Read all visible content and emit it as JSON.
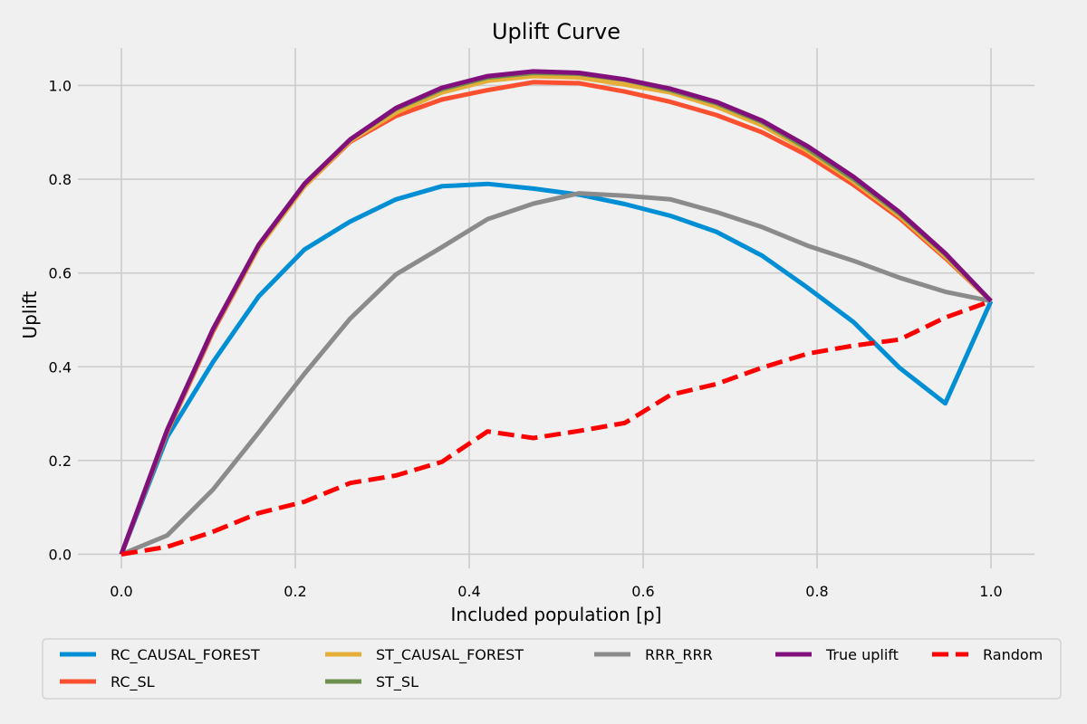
{
  "chart_data": {
    "type": "line",
    "title": "Uplift Curve",
    "xlabel": "Included population [p]",
    "ylabel": "Uplift",
    "xlim": [
      -0.05,
      1.05
    ],
    "ylim": [
      -0.03,
      1.08
    ],
    "xticks": [
      0.0,
      0.2,
      0.4,
      0.6,
      0.8,
      1.0
    ],
    "yticks": [
      0.0,
      0.2,
      0.4,
      0.6,
      0.8,
      1.0
    ],
    "tick_labels_x": [
      "0.0",
      "0.2",
      "0.4",
      "0.6",
      "0.8",
      "1.0"
    ],
    "tick_labels_y": [
      "0.0",
      "0.2",
      "0.4",
      "0.6",
      "0.8",
      "1.0"
    ],
    "grid": true,
    "legend_position": "bottom",
    "x": [
      0.0,
      0.0526,
      0.1053,
      0.1579,
      0.2105,
      0.2632,
      0.3158,
      0.3684,
      0.4211,
      0.4737,
      0.5263,
      0.5789,
      0.6316,
      0.6842,
      0.7368,
      0.7895,
      0.8421,
      0.8947,
      0.9474,
      1.0
    ],
    "series": [
      {
        "name": "RC_CAUSAL_FOREST",
        "color": "#008fd5",
        "dash": false,
        "values": [
          0.0,
          0.25,
          0.41,
          0.55,
          0.65,
          0.71,
          0.757,
          0.785,
          0.79,
          0.78,
          0.767,
          0.747,
          0.722,
          0.688,
          0.637,
          0.568,
          0.495,
          0.398,
          0.322,
          0.54
        ]
      },
      {
        "name": "RC_SL",
        "color": "#fc4f30",
        "dash": false,
        "values": [
          0.0,
          0.26,
          0.475,
          0.655,
          0.785,
          0.88,
          0.935,
          0.97,
          0.99,
          1.007,
          1.005,
          0.987,
          0.965,
          0.937,
          0.9,
          0.85,
          0.788,
          0.717,
          0.632,
          0.54
        ]
      },
      {
        "name": "ST_CAUSAL_FOREST",
        "color": "#e5ae38",
        "dash": false,
        "values": [
          0.0,
          0.262,
          0.478,
          0.655,
          0.785,
          0.882,
          0.942,
          0.985,
          1.01,
          1.02,
          1.017,
          1.002,
          0.985,
          0.955,
          0.915,
          0.86,
          0.795,
          0.722,
          0.635,
          0.54
        ]
      },
      {
        "name": "ST_SL",
        "color": "#6d904f",
        "dash": false,
        "values": [
          0.0,
          0.265,
          0.48,
          0.66,
          0.79,
          0.885,
          0.95,
          0.992,
          1.017,
          1.027,
          1.025,
          1.012,
          0.99,
          0.962,
          0.922,
          0.865,
          0.8,
          0.727,
          0.64,
          0.54
        ]
      },
      {
        "name": "RRR_RRR",
        "color": "#8b8b8b",
        "dash": false,
        "values": [
          0.0,
          0.04,
          0.138,
          0.26,
          0.385,
          0.503,
          0.597,
          0.655,
          0.715,
          0.748,
          0.77,
          0.765,
          0.757,
          0.73,
          0.698,
          0.658,
          0.626,
          0.59,
          0.56,
          0.54
        ]
      },
      {
        "name": "True uplift",
        "color": "#810f7c",
        "dash": false,
        "values": [
          0.0,
          0.265,
          0.48,
          0.66,
          0.79,
          0.885,
          0.952,
          0.995,
          1.02,
          1.03,
          1.027,
          1.013,
          0.993,
          0.965,
          0.925,
          0.87,
          0.805,
          0.73,
          0.642,
          0.54
        ]
      },
      {
        "name": "Random",
        "color": "#ff0000",
        "dash": true,
        "values": [
          0.0,
          0.016,
          0.048,
          0.088,
          0.112,
          0.152,
          0.168,
          0.197,
          0.262,
          0.248,
          0.263,
          0.28,
          0.34,
          0.363,
          0.398,
          0.428,
          0.445,
          0.458,
          0.505,
          0.54
        ]
      }
    ]
  }
}
